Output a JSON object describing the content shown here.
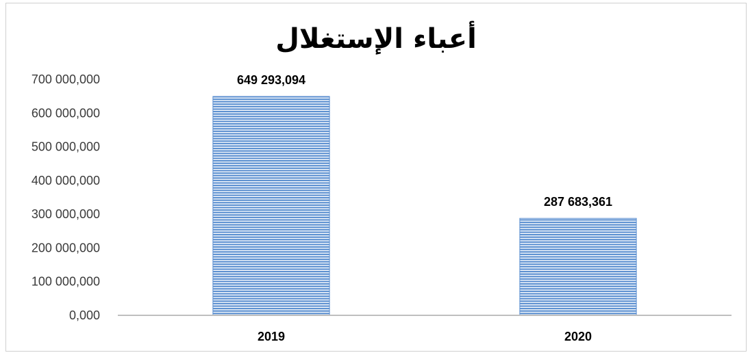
{
  "chart_data": {
    "type": "bar",
    "title": "أعباء الإستغلال",
    "categories": [
      "2019",
      "2020"
    ],
    "values": [
      649293.094,
      287683.361
    ],
    "data_labels": [
      "649 293,094",
      "287 683,361"
    ],
    "ylim": [
      0,
      700000
    ],
    "yticks": [
      0,
      100000,
      200000,
      300000,
      400000,
      500000,
      600000,
      700000
    ],
    "ytick_labels": [
      "0,000",
      "100 000,000",
      "200 000,000",
      "300 000,000",
      "400 000,000",
      "500 000,000",
      "600 000,000",
      "700 000,000"
    ],
    "xlabel": "",
    "ylabel": "",
    "grid": false,
    "legend": "none",
    "bar_color": "#5b8fd0",
    "bar_pattern": "horizontal-stripes"
  }
}
